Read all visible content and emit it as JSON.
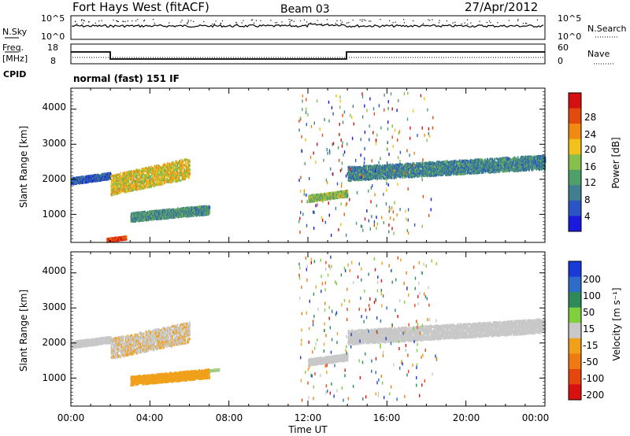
{
  "header": {
    "station": "Fort Hays West (fitACF)",
    "beam": "Beam 03",
    "date": "27/Apr/2012"
  },
  "noise_panel": {
    "left_label": "N.Sky",
    "right_label": "N.Search",
    "left_ticks": [
      "10^5",
      "10^0"
    ],
    "right_ticks": [
      "10^5",
      "10^0"
    ]
  },
  "freq_panel": {
    "left_label_1": "Freq.",
    "left_label_2": "[MHz]",
    "right_label": "Nave",
    "left_ticks": [
      "18",
      "8"
    ],
    "right_ticks": [
      "60",
      "0"
    ],
    "cpid_label": "CPID",
    "mode_text": "normal (fast) 151 IF"
  },
  "x_axis": {
    "label": "Time UT",
    "tick_labels": [
      "00:00",
      "04:00",
      "08:00",
      "12:00",
      "16:00",
      "20:00",
      "00:00"
    ]
  },
  "power_panel": {
    "ylabel": "Slant Range [km]",
    "yticks": [
      "1000",
      "2000",
      "3000",
      "4000"
    ],
    "colorbar_label": "Power [dB]",
    "colorbar_ticks": [
      "4",
      "8",
      "12",
      "16",
      "20",
      "24",
      "28"
    ],
    "colors": [
      "#1a1adf",
      "#2b55c4",
      "#3f7f8f",
      "#4f9f6a",
      "#86c04a",
      "#f2c21a",
      "#f08a10",
      "#e24a0e",
      "#d61010"
    ]
  },
  "velocity_panel": {
    "ylabel": "Slant Range [km]",
    "yticks": [
      "1000",
      "2000",
      "3000",
      "4000"
    ],
    "colorbar_label": "Velocity [m s⁻¹]",
    "colorbar_ticks": [
      "200",
      "100",
      "50",
      "15",
      "-15",
      "-50",
      "-100",
      "-200"
    ],
    "colors": [
      "#1a3ad8",
      "#2f6bc9",
      "#2f8a5a",
      "#7fcf3f",
      "#c8c8c8",
      "#f0a01a",
      "#ee7a12",
      "#e4460e",
      "#d81010"
    ]
  },
  "chart_data": [
    {
      "type": "heatmap",
      "name": "power",
      "x_unit": "hours UT",
      "xlim": [
        0,
        24
      ],
      "ylim": [
        200,
        4600
      ],
      "value_range_dB": [
        0,
        30
      ],
      "echo_regions": [
        {
          "x": [
            0,
            2
          ],
          "y": [
            1800,
            2300
          ],
          "value": 6
        },
        {
          "x": [
            2,
            6
          ],
          "y": [
            1300,
            2900
          ],
          "value": 18
        },
        {
          "x": [
            1.8,
            2.8
          ],
          "y": [
            200,
            450
          ],
          "value": 26
        },
        {
          "x": [
            3,
            7
          ],
          "y": [
            700,
            1400
          ],
          "value": 10
        },
        {
          "x": [
            12,
            14
          ],
          "y": [
            1300,
            1800
          ],
          "value": 14
        },
        {
          "x": [
            14,
            24
          ],
          "y": [
            1800,
            2900
          ],
          "value": 9
        }
      ]
    },
    {
      "type": "heatmap",
      "name": "velocity",
      "x_unit": "hours UT",
      "xlim": [
        0,
        24
      ],
      "ylim": [
        200,
        4600
      ],
      "value_range_m_s": [
        -250,
        250
      ],
      "echo_regions": [
        {
          "x": [
            0,
            2
          ],
          "y": [
            1800,
            2300
          ],
          "value": 0
        },
        {
          "x": [
            2,
            6
          ],
          "y": [
            1300,
            2900
          ],
          "value": -20
        },
        {
          "x": [
            3,
            7
          ],
          "y": [
            700,
            1400
          ],
          "value": -60
        },
        {
          "x": [
            7,
            7.5
          ],
          "y": [
            1200,
            1300
          ],
          "value": 30
        },
        {
          "x": [
            12,
            14
          ],
          "y": [
            1300,
            1800
          ],
          "value": 0
        },
        {
          "x": [
            14,
            24
          ],
          "y": [
            1800,
            2900
          ],
          "value": 0
        }
      ]
    }
  ]
}
